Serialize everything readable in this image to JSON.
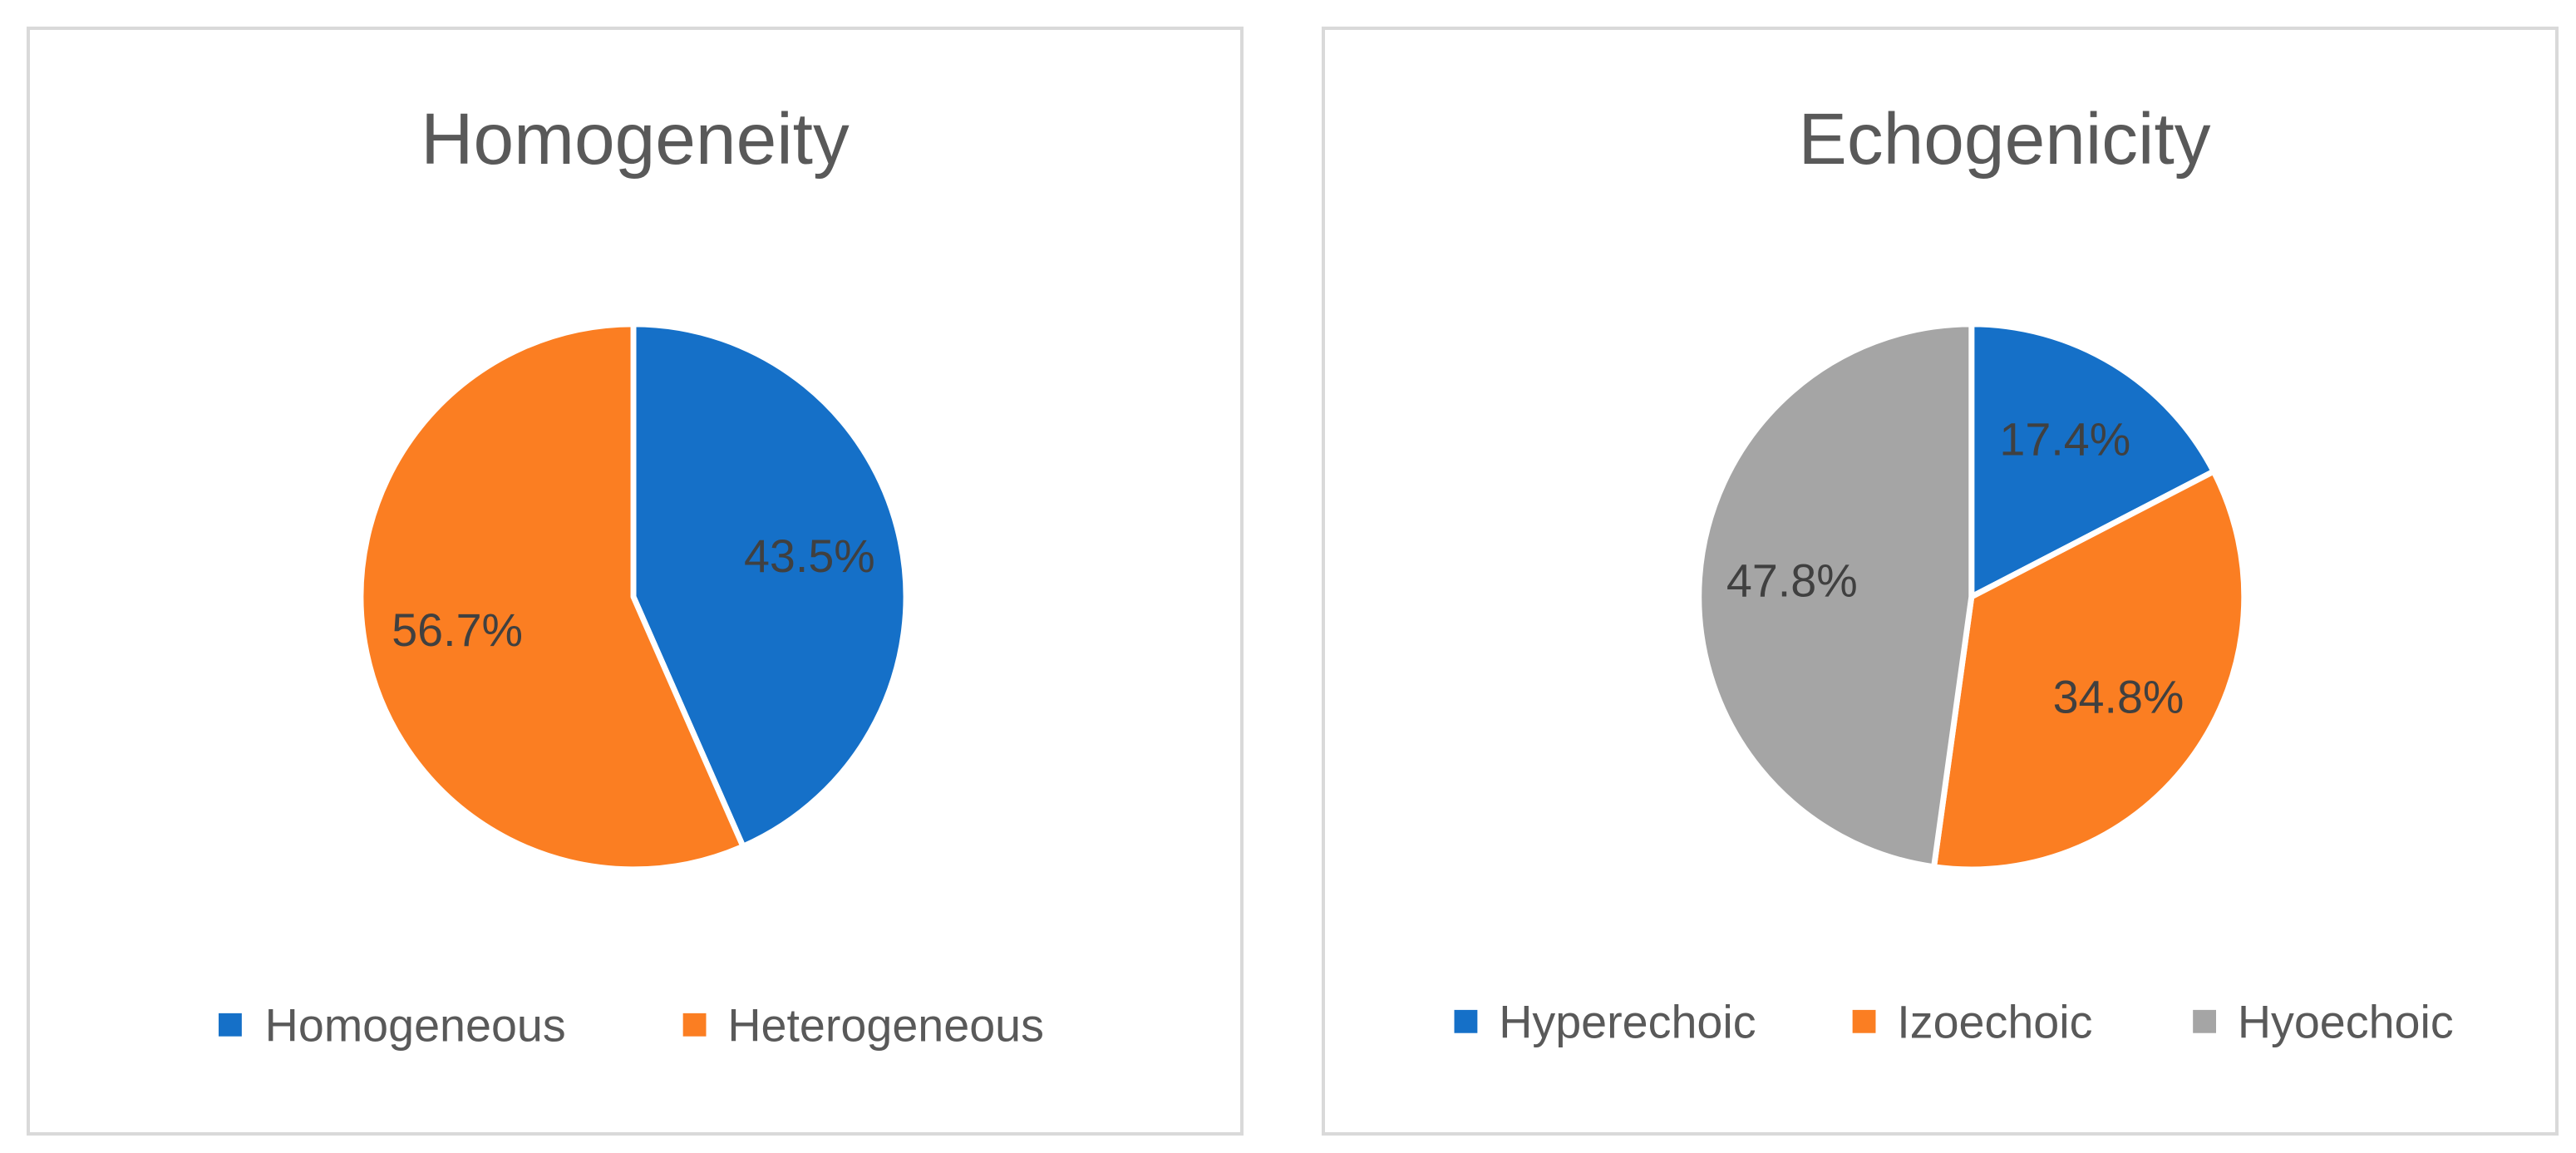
{
  "chart_data": [
    {
      "type": "pie",
      "title": "Homogeneity",
      "categories": [
        "Homogeneous",
        "Heterogeneous"
      ],
      "values": [
        43.5,
        56.7
      ],
      "data_labels": [
        "43.5%",
        "56.7%"
      ],
      "colors": [
        "#1570C8",
        "#FB7E22"
      ],
      "legend": "bottom"
    },
    {
      "type": "pie",
      "title": "Echogenicity",
      "categories": [
        "Hyperechoic",
        "Izoechoic",
        "Hyoechoic"
      ],
      "values": [
        17.4,
        34.8,
        47.8
      ],
      "data_labels": [
        "17.4%",
        "34.8%",
        "47.8%"
      ],
      "colors": [
        "#1570C8",
        "#FB7E22",
        "#A5A5A5"
      ],
      "legend": "bottom"
    }
  ]
}
